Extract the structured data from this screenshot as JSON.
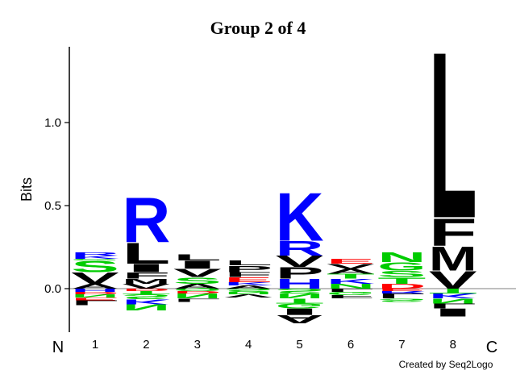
{
  "chart_data": {
    "type": "sequence-logo",
    "title": "Group 2 of 4",
    "ylabel": "Bits",
    "ylim": [
      -0.25,
      1.45
    ],
    "yticks": [
      {
        "value": 0.0,
        "label": "0.0"
      },
      {
        "value": 0.5,
        "label": "0.5"
      },
      {
        "value": 1.0,
        "label": "1.0"
      }
    ],
    "n_terminus_label": "N",
    "c_terminus_label": "C",
    "credit": "Created by Seq2Logo",
    "colors": {
      "hydrophobic": "#000000",
      "polar": "#00cc00",
      "basic": "#0000ff",
      "acidic": "#ff0000"
    },
    "positions": [
      {
        "label": "1",
        "pos": [
          {
            "aa": "A",
            "value": 0.03
          },
          {
            "aa": "V",
            "value": 0.07
          },
          {
            "aa": "S",
            "value": 0.07
          },
          {
            "aa": "G",
            "value": 0.01
          },
          {
            "aa": "K",
            "value": 0.02
          },
          {
            "aa": "R",
            "value": 0.02
          }
        ],
        "neg": [
          {
            "aa": "H",
            "value": 0.02
          },
          {
            "aa": "D",
            "value": 0.015
          },
          {
            "aa": "N",
            "value": 0.02
          },
          {
            "aa": "E",
            "value": 0.015
          },
          {
            "aa": "L",
            "value": 0.03
          }
        ]
      },
      {
        "label": "2",
        "pos": [
          {
            "aa": "V",
            "value": 0.03
          },
          {
            "aa": "M",
            "value": 0.03
          },
          {
            "aa": "F",
            "value": 0.04
          },
          {
            "aa": "I",
            "value": 0.05
          },
          {
            "aa": "L",
            "value": 0.13
          },
          {
            "aa": "R",
            "value": 0.28
          }
        ],
        "neg": [
          {
            "aa": "D",
            "value": 0.015
          },
          {
            "aa": "T",
            "value": 0.02
          },
          {
            "aa": "S",
            "value": 0.03
          },
          {
            "aa": "K",
            "value": 0.03
          },
          {
            "aa": "N",
            "value": 0.04
          }
        ]
      },
      {
        "label": "3",
        "pos": [
          {
            "aa": "A",
            "value": 0.03
          },
          {
            "aa": "S",
            "value": 0.04
          },
          {
            "aa": "V",
            "value": 0.05
          },
          {
            "aa": "I",
            "value": 0.05
          },
          {
            "aa": "L",
            "value": 0.04
          }
        ],
        "neg": [
          {
            "aa": "Q",
            "value": 0.015
          },
          {
            "aa": "D",
            "value": 0.015
          },
          {
            "aa": "N",
            "value": 0.03
          },
          {
            "aa": "L",
            "value": 0.02
          }
        ]
      },
      {
        "label": "4",
        "pos": [
          {
            "aa": "A",
            "value": 0.02
          },
          {
            "aa": "K",
            "value": 0.02
          },
          {
            "aa": "E",
            "value": 0.03
          },
          {
            "aa": "F",
            "value": 0.03
          },
          {
            "aa": "P",
            "value": 0.04
          },
          {
            "aa": "L",
            "value": 0.03
          }
        ],
        "neg": [
          {
            "aa": "S",
            "value": 0.02
          },
          {
            "aa": "N",
            "value": 0.015
          },
          {
            "aa": "V",
            "value": 0.02
          }
        ]
      },
      {
        "label": "5",
        "pos": [
          {
            "aa": "H",
            "value": 0.06
          },
          {
            "aa": "P",
            "value": 0.07
          },
          {
            "aa": "V",
            "value": 0.07
          },
          {
            "aa": "R",
            "value": 0.09
          },
          {
            "aa": "K",
            "value": 0.3
          }
        ],
        "neg": [
          {
            "aa": "S",
            "value": 0.03
          },
          {
            "aa": "N",
            "value": 0.03
          },
          {
            "aa": "T",
            "value": 0.03
          },
          {
            "aa": "G",
            "value": 0.03
          },
          {
            "aa": "I",
            "value": 0.04
          },
          {
            "aa": "A",
            "value": 0.05
          }
        ]
      },
      {
        "label": "6",
        "pos": [
          {
            "aa": "N",
            "value": 0.03
          },
          {
            "aa": "K",
            "value": 0.03
          },
          {
            "aa": "T",
            "value": 0.03
          },
          {
            "aa": "A",
            "value": 0.03
          },
          {
            "aa": "V",
            "value": 0.03
          },
          {
            "aa": "E",
            "value": 0.03
          }
        ],
        "neg": [
          {
            "aa": "L",
            "value": 0.02
          },
          {
            "aa": "G",
            "value": 0.02
          },
          {
            "aa": "F",
            "value": 0.02
          }
        ]
      },
      {
        "label": "7",
        "pos": [
          {
            "aa": "D",
            "value": 0.03
          },
          {
            "aa": "T",
            "value": 0.04
          },
          {
            "aa": "S",
            "value": 0.04
          },
          {
            "aa": "G",
            "value": 0.05
          },
          {
            "aa": "N",
            "value": 0.06
          }
        ],
        "neg": [
          {
            "aa": "E",
            "value": 0.015
          },
          {
            "aa": "R",
            "value": 0.015
          },
          {
            "aa": "L",
            "value": 0.03
          },
          {
            "aa": "S",
            "value": 0.02
          }
        ]
      },
      {
        "label": "8",
        "pos": [
          {
            "aa": "V",
            "value": 0.11
          },
          {
            "aa": "M",
            "value": 0.15
          },
          {
            "aa": "F",
            "value": 0.17
          },
          {
            "aa": "L",
            "value": 1.03
          }
        ],
        "neg": [
          {
            "aa": "T",
            "value": 0.03
          },
          {
            "aa": "K",
            "value": 0.03
          },
          {
            "aa": "N",
            "value": 0.03
          },
          {
            "aa": "L",
            "value": 0.03
          },
          {
            "aa": "I",
            "value": 0.05
          }
        ]
      }
    ]
  }
}
